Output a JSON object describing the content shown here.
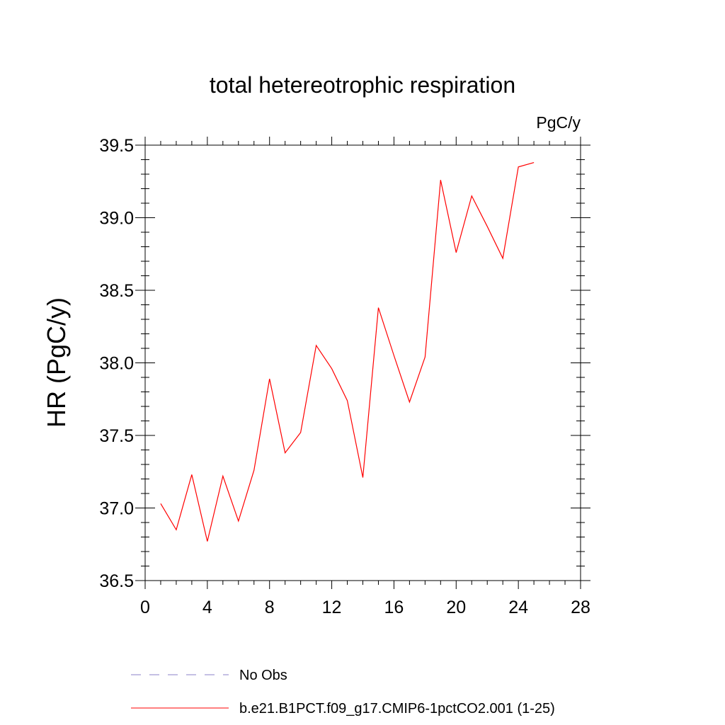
{
  "chart_data": {
    "type": "line",
    "title": "total hetereotrophic respiration",
    "units_label": "PgC/y",
    "xlabel": "",
    "ylabel": "HR  (PgC/y)",
    "xlim": [
      0,
      28
    ],
    "ylim": [
      36.5,
      39.5
    ],
    "x_ticks": [
      0,
      4,
      8,
      12,
      16,
      20,
      24,
      28
    ],
    "x_tick_labels": [
      "0",
      "4",
      "8",
      "12",
      "16",
      "20",
      "24",
      "28"
    ],
    "y_ticks": [
      36.5,
      37.0,
      37.5,
      38.0,
      38.5,
      39.0,
      39.5
    ],
    "y_tick_labels": [
      "36.5",
      "37.0",
      "37.5",
      "38.0",
      "38.5",
      "39.0",
      "39.5"
    ],
    "grid": false,
    "legend_position": "bottom",
    "series": [
      {
        "name": "b.e21.B1PCT.f09_g17.CMIP6-1pctCO2.001 (1-25)",
        "color": "#ff0000",
        "dash": "solid",
        "x": [
          1,
          2,
          3,
          4,
          5,
          6,
          7,
          8,
          9,
          10,
          11,
          12,
          13,
          14,
          15,
          16,
          17,
          18,
          19,
          20,
          21,
          22,
          23,
          24,
          25
        ],
        "values": [
          37.03,
          36.85,
          37.23,
          36.77,
          37.22,
          36.91,
          37.26,
          37.89,
          37.38,
          37.52,
          38.12,
          37.96,
          37.74,
          37.21,
          38.38,
          38.05,
          37.73,
          38.04,
          39.26,
          38.76,
          39.15,
          38.94,
          38.72,
          39.35,
          39.38
        ]
      },
      {
        "name": "No Obs",
        "color": "#8b80c8",
        "dash": "dashed",
        "x": [],
        "values": []
      }
    ]
  }
}
